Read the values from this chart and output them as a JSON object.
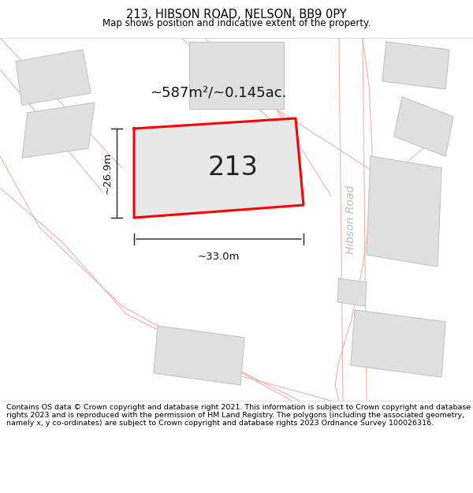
{
  "title_line1": "213, HIBSON ROAD, NELSON, BB9 0PY",
  "title_line2": "Map shows position and indicative extent of the property.",
  "footer_text": "Contains OS data © Crown copyright and database right 2021. This information is subject to Crown copyright and database rights 2023 and is reproduced with the permission of HM Land Registry. The polygons (including the associated geometry, namely x, y co-ordinates) are subject to Crown copyright and database rights 2023 Ordnance Survey 100026316.",
  "area_text": "~587m²/~0.145ac.",
  "property_number": "213",
  "road_label": "Hibson Road",
  "dim_width": "~33.0m",
  "dim_height": "~26.9m",
  "map_bg": "#ffffff",
  "title_bg": "#ffffff",
  "footer_bg": "#ffffff",
  "property_fill": "#e8e8e8",
  "property_edge": "#ff0000",
  "road_lines_color": "#f0b0b0",
  "building_fill": "#e0e0e0",
  "building_edge": "#c0c0c0",
  "dim_line_color": "#222222",
  "road_text_color": "#bbbbbb"
}
